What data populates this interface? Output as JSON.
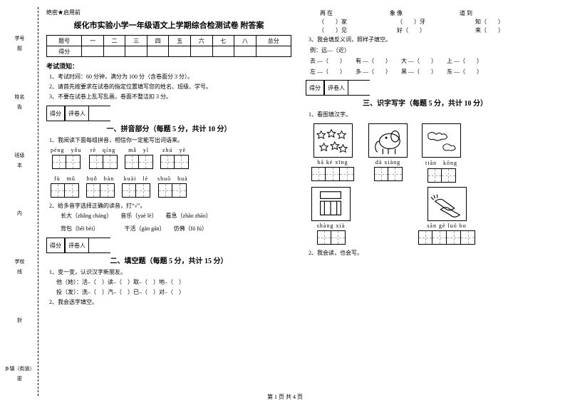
{
  "sidebar": {
    "labels": [
      "学号",
      "姓名",
      "班级",
      "学校",
      "乡镇（街道）"
    ],
    "marks": [
      "---",
      "题",
      "告",
      "本",
      "内",
      "线",
      "封",
      "密",
      "---"
    ]
  },
  "secret": "绝密★启用前",
  "title": "绥化市实验小学一年级语文上学期综合检测试卷 附答案",
  "scoreTable": {
    "head": [
      "题号",
      "一",
      "二",
      "三",
      "四",
      "五",
      "六",
      "七",
      "八",
      "总分"
    ],
    "row2": "得分"
  },
  "notice": {
    "head": "考试须知：",
    "n1": "1、考试时间：60 分钟，满分为 100 分（含卷面分 3 分）。",
    "n2": "2、请首先按要求在试卷的指定位置填写您的姓名、班级、学号。",
    "n3": "3、不要在试卷上乱写乱画，卷面不整洁扣 3 分。"
  },
  "scoreBox": {
    "l1": "得分",
    "l2": "评卷人"
  },
  "sec1": {
    "title": "一、拼音部分（每题 5 分，共计 10 分）",
    "q1": "1、我阅读下面每组拼音，相信你一定能写出词语来。",
    "row1": [
      "péng",
      "yǒu",
      "rè",
      "qíng",
      "mǎ",
      "yǐ",
      "zhú",
      "yè"
    ],
    "row2": [
      "fù",
      "mǔ",
      "huǒ",
      "bàn",
      "kuài",
      "lè",
      "shuō",
      "huà"
    ],
    "q2": "2、给多音字选择正确的读音，打“√”。",
    "q2a": "长大（zhǎng  cháng）　　音乐（yuè  lè）　　看急（zhāo  zhāo）",
    "q2b": "背包（bēi  bèi）　　　　　干活（gàn  gān）　　仿佛（fó  fú）"
  },
  "sec2": {
    "title": "二、填空题（每题 5 分，共计 15 分）",
    "q1": "1、变一变，认识汉字新朋友。",
    "q1a": "他（她）：活–（　）读–（　）取–（　）地–（　）",
    "q1b": "投（发）：洗–（　）汽–（　）已–（　）对–（　）",
    "q2": "2、我会选字填空。"
  },
  "right": {
    "topRow1": [
      "再 在",
      "象 像",
      "道 到"
    ],
    "topRow2a": [
      "（　　）家",
      "（　　）牙",
      "知（　　）"
    ],
    "topRow2b": [
      "（　　）见",
      "好（　　）",
      "来（　　）"
    ],
    "q3": "3、我会填反义词，照样子填空。",
    "eg": "例：远—（近）",
    "f1": [
      "去 —（　　）",
      "有 —（　　）",
      "大 —（　　）",
      "上 —（　　）"
    ],
    "f2": [
      "左 —（　　）",
      "多 —（　　）",
      "黑 —（　　）",
      "东 —（　　）"
    ]
  },
  "sec3": {
    "title": "三、识字写字（每题 5 分，共计 10 分）",
    "q1": "1、看图填汉字。",
    "labels1": [
      "bā kè xīng",
      "dà xiàng",
      "tiān　kōng"
    ],
    "labels2": [
      "shàng xià",
      "",
      "sān gè luó bo"
    ],
    "q2": "2、我会读，也会写。"
  },
  "footer": "第 1 页 共 4 页"
}
